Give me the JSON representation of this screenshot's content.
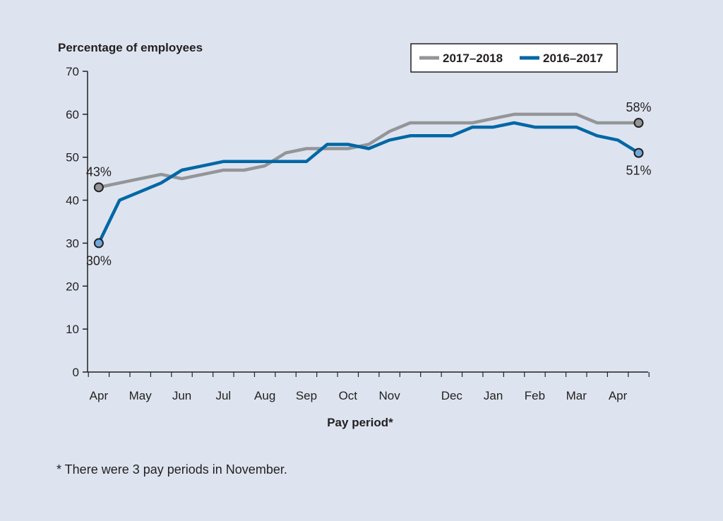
{
  "colors": {
    "background": "#dde4ef",
    "series_2017_2018": "#939598",
    "series_2016_2017": "#0067a5",
    "marker_2016_2017": "#6fa8dc",
    "marker_2017_2018": "#939598",
    "axis": "#231f20"
  },
  "chart_data": {
    "type": "line",
    "ylabel": "Percentage of employees",
    "xlabel": "Pay period*",
    "ylim": [
      0,
      70
    ],
    "yticks": [
      0,
      10,
      20,
      30,
      40,
      50,
      60,
      70
    ],
    "grid": false,
    "legend_position": "top-right",
    "x": [
      1,
      2,
      3,
      4,
      5,
      6,
      7,
      8,
      9,
      10,
      11,
      12,
      13,
      14,
      15,
      16,
      17,
      18,
      19,
      20,
      21,
      22,
      23,
      24,
      25,
      26,
      27
    ],
    "month_ticks": [
      {
        "label": "Apr",
        "x": 1
      },
      {
        "label": "May",
        "x": 3
      },
      {
        "label": "Jun",
        "x": 5
      },
      {
        "label": "Jul",
        "x": 7
      },
      {
        "label": "Aug",
        "x": 9
      },
      {
        "label": "Sep",
        "x": 11
      },
      {
        "label": "Oct",
        "x": 13
      },
      {
        "label": "Nov",
        "x": 15
      },
      {
        "label": "Dec",
        "x": 18
      },
      {
        "label": "Jan",
        "x": 20
      },
      {
        "label": "Feb",
        "x": 22
      },
      {
        "label": "Mar",
        "x": 24
      },
      {
        "label": "Apr",
        "x": 26
      }
    ],
    "series": [
      {
        "name": "2017–2018",
        "color": "#939598",
        "values": [
          43,
          44,
          45,
          46,
          45,
          46,
          47,
          47,
          48,
          51,
          52,
          52,
          52,
          53,
          56,
          58,
          58,
          58,
          58,
          59,
          60,
          60,
          60,
          60,
          58,
          58,
          58
        ],
        "start_label": "43%",
        "end_label": "58%"
      },
      {
        "name": "2016–2017",
        "color": "#0067a5",
        "values": [
          30,
          40,
          42,
          44,
          47,
          48,
          49,
          49,
          49,
          49,
          49,
          53,
          53,
          52,
          54,
          55,
          55,
          55,
          57,
          57,
          58,
          57,
          57,
          57,
          55,
          54,
          51
        ],
        "start_label": "30%",
        "end_label": "51%"
      }
    ]
  },
  "footnote": "* There were 3 pay periods in November."
}
